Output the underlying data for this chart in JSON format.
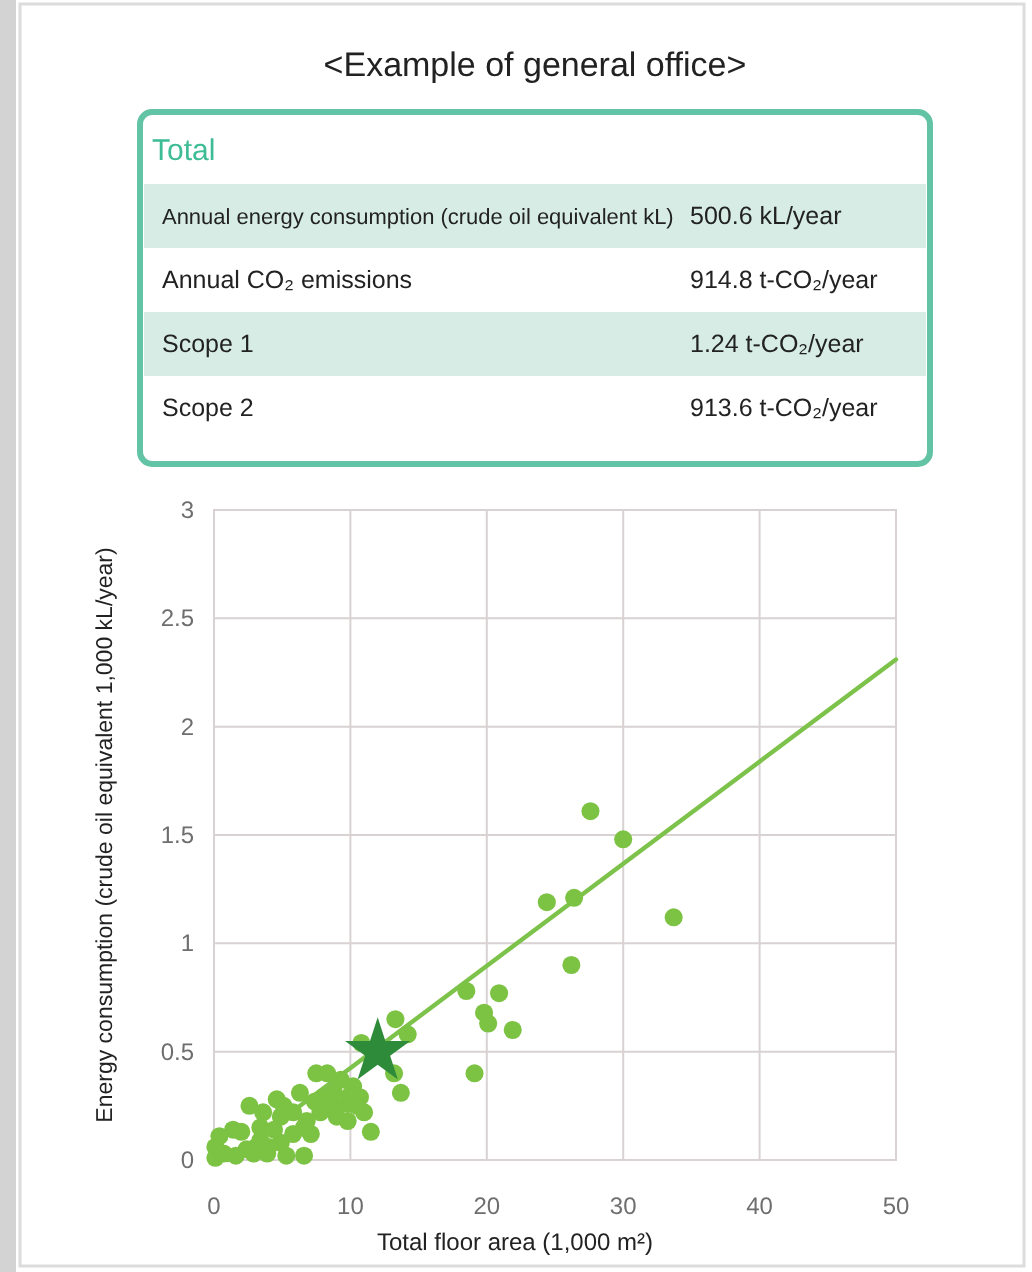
{
  "chart_data": [
    {
      "type": "other",
      "title": "<Example of general office>",
      "subtitle": "Total",
      "annotations": [
        "Annual energy consumption (crude oil equivalent kL)",
        "500.6 kL/year",
        "Annual CO₂ emissions",
        "914.8 t-CO₂/year",
        "Scope 1",
        "1.24 t-CO₂/year",
        "Scope 2",
        "913.6 t-CO₂/year"
      ]
    },
    {
      "type": "scatter",
      "xlabel": "Total floor area (1,000 m²)",
      "ylabel": "Energy consumption (crude oil equivalent 1,000 kL/year)",
      "xlim": [
        0,
        50
      ],
      "xticks": [
        0,
        10,
        20,
        30,
        40,
        50
      ],
      "ylim": [
        0,
        3
      ],
      "yticks": [
        0,
        0.5,
        1,
        1.5,
        2,
        2.5,
        3
      ],
      "grid": true,
      "series": [
        {
          "type": "scatter",
          "marker": "circle",
          "color": "#7cc243",
          "x": [
            27.6,
            30.0,
            26.4,
            24.4,
            33.7,
            26.2,
            18.5,
            20.9,
            19.8,
            20.1,
            21.9,
            19.1,
            13.3,
            14.2,
            10.8,
            13.7,
            13.2,
            11.5,
            7.5,
            8.3,
            6.3,
            4.6,
            2.6,
            9.3,
            10.2,
            10.7,
            9.8,
            8.8,
            7.8,
            6.8,
            5.8,
            4.9,
            7.1,
            9.8,
            11.0,
            3.4,
            1.4,
            0.4,
            0.1,
            0.1,
            2.4,
            3.9,
            5.3,
            6.6,
            3.4,
            4.9,
            5.8,
            4.4,
            0.7,
            2.9,
            8.8,
            8.0,
            10.5,
            5.1,
            3.6,
            6.6,
            1.6,
            2.0,
            4.0,
            9.0,
            10.0,
            7.4
          ],
          "values": [
            1.61,
            1.48,
            1.21,
            1.19,
            1.12,
            0.9,
            0.78,
            0.77,
            0.68,
            0.63,
            0.6,
            0.4,
            0.65,
            0.58,
            0.54,
            0.31,
            0.4,
            0.13,
            0.4,
            0.4,
            0.31,
            0.28,
            0.25,
            0.37,
            0.34,
            0.29,
            0.26,
            0.25,
            0.22,
            0.18,
            0.22,
            0.2,
            0.12,
            0.18,
            0.22,
            0.15,
            0.14,
            0.11,
            0.06,
            0.01,
            0.05,
            0.03,
            0.02,
            0.02,
            0.09,
            0.08,
            0.12,
            0.14,
            0.03,
            0.03,
            0.31,
            0.29,
            0.25,
            0.25,
            0.22,
            0.15,
            0.02,
            0.13,
            0.06,
            0.2,
            0.3,
            0.27
          ]
        },
        {
          "type": "line",
          "color": "#7dc24b",
          "x": [
            1,
            50
          ],
          "values": [
            0,
            2.31
          ]
        },
        {
          "type": "scatter",
          "marker": "star",
          "color": "#2e8b3a",
          "x": [
            12
          ],
          "values": [
            0.5
          ]
        }
      ]
    }
  ]
}
